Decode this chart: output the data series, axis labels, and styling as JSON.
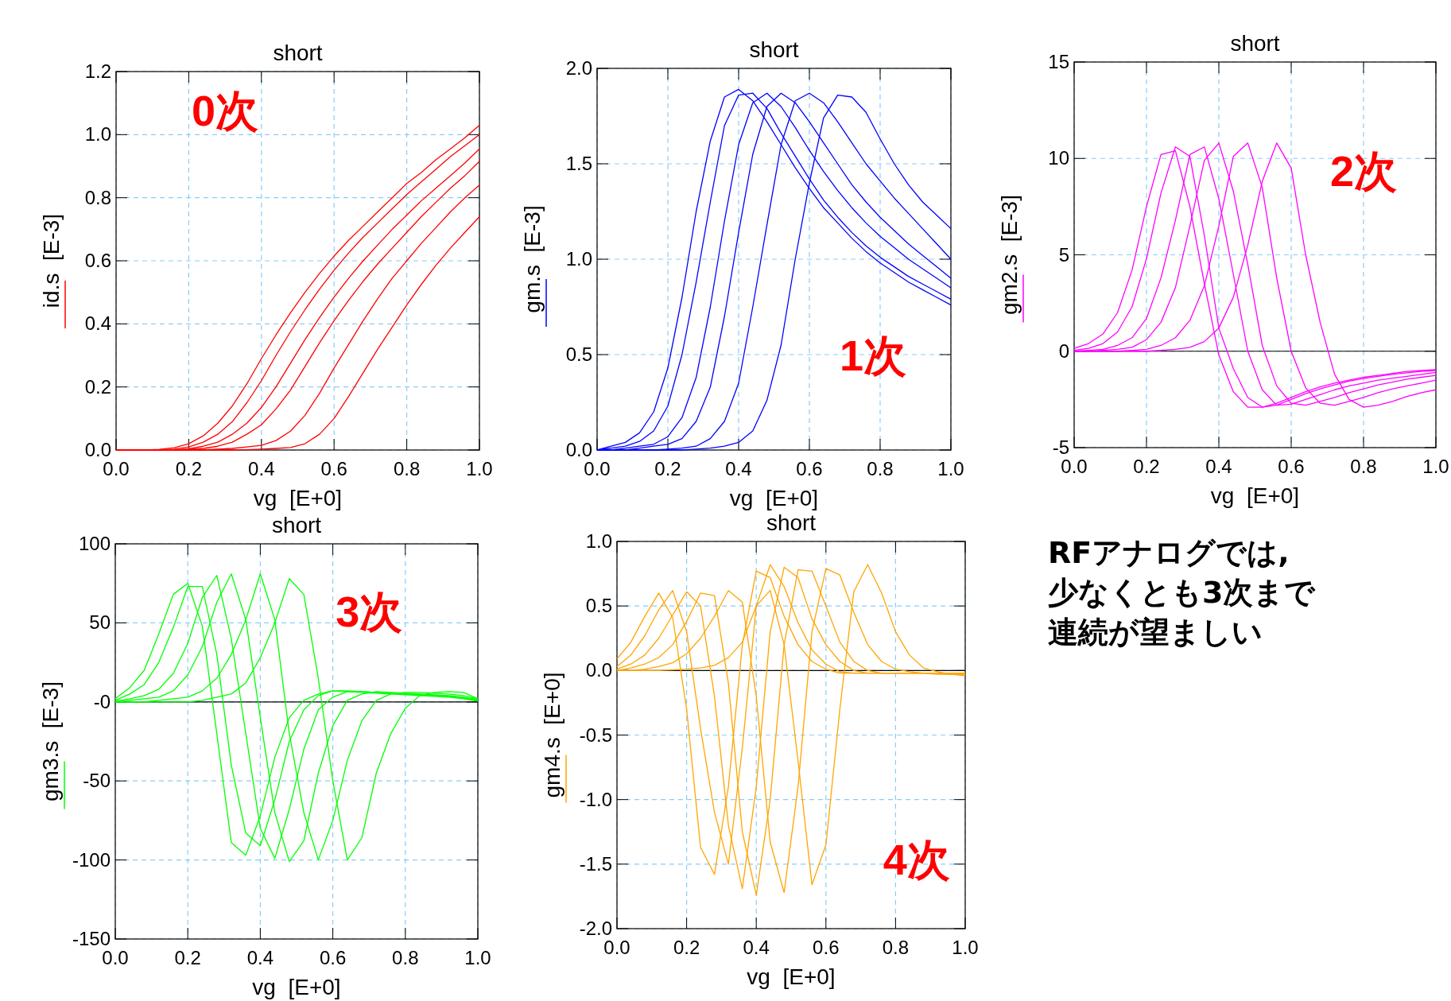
{
  "chart_data": [
    {
      "type": "line",
      "title": "short",
      "xlabel": "vg  [E+0]",
      "ylabel": "id.s  [E-3]",
      "grid": true,
      "annotations": [
        "0次"
      ],
      "xlim": [
        0,
        1
      ],
      "ylim": [
        0,
        1.2
      ],
      "xticks": [
        {
          "value": 0,
          "label": "0.0"
        },
        {
          "value": 0.2,
          "label": "0.2"
        },
        {
          "value": 0.4,
          "label": "0.4"
        },
        {
          "value": 0.6,
          "label": "0.6"
        },
        {
          "value": 0.8,
          "label": "0.8"
        },
        {
          "value": 1,
          "label": "1.0"
        }
      ],
      "yticks": [
        {
          "value": 0,
          "label": "0.0"
        },
        {
          "value": 0.2,
          "label": "0.2"
        },
        {
          "value": 0.4,
          "label": "0.4"
        },
        {
          "value": 0.6,
          "label": "0.6"
        },
        {
          "value": 0.8,
          "label": "0.8"
        },
        {
          "value": 1,
          "label": "1.0"
        },
        {
          "value": 1.2,
          "label": "1.2"
        }
      ],
      "x": [
        0,
        0.04,
        0.08,
        0.12,
        0.16,
        0.2,
        0.24,
        0.28,
        0.32,
        0.36,
        0.4,
        0.44,
        0.48,
        0.52,
        0.56,
        0.6,
        0.64,
        0.68,
        0.72,
        0.76,
        0.8,
        0.84,
        0.88,
        0.92,
        0.96,
        1
      ],
      "series": [
        {
          "color": "#ff0000",
          "values": [
            0,
            0,
            0,
            0.002,
            0.007,
            0.02,
            0.045,
            0.085,
            0.14,
            0.21,
            0.29,
            0.365,
            0.435,
            0.5,
            0.56,
            0.615,
            0.665,
            0.71,
            0.755,
            0.8,
            0.845,
            0.88,
            0.92,
            0.955,
            0.99,
            1.03
          ]
        },
        {
          "color": "#ff0000",
          "values": [
            0,
            0,
            0,
            0,
            0.003,
            0.01,
            0.025,
            0.05,
            0.09,
            0.15,
            0.22,
            0.3,
            0.375,
            0.445,
            0.51,
            0.57,
            0.625,
            0.675,
            0.72,
            0.765,
            0.81,
            0.85,
            0.89,
            0.93,
            0.965,
            1.0
          ]
        },
        {
          "color": "#ff0000",
          "values": [
            0,
            0,
            0,
            0,
            0,
            0.004,
            0.012,
            0.025,
            0.05,
            0.085,
            0.135,
            0.2,
            0.275,
            0.35,
            0.42,
            0.485,
            0.545,
            0.6,
            0.65,
            0.7,
            0.745,
            0.79,
            0.83,
            0.87,
            0.91,
            0.955
          ]
        },
        {
          "color": "#ff0000",
          "values": [
            0,
            0,
            0,
            0,
            0,
            0.002,
            0.005,
            0.012,
            0.025,
            0.05,
            0.08,
            0.13,
            0.19,
            0.265,
            0.34,
            0.41,
            0.475,
            0.535,
            0.59,
            0.64,
            0.69,
            0.74,
            0.785,
            0.83,
            0.87,
            0.915
          ]
        },
        {
          "color": "#ff0000",
          "values": [
            0,
            0,
            0,
            0,
            0,
            0,
            0.001,
            0.003,
            0.005,
            0.01,
            0.015,
            0.03,
            0.06,
            0.11,
            0.18,
            0.26,
            0.335,
            0.41,
            0.48,
            0.545,
            0.6,
            0.655,
            0.705,
            0.755,
            0.8,
            0.84
          ]
        },
        {
          "color": "#ff0000",
          "values": [
            0,
            0,
            0,
            0,
            0,
            0,
            0,
            0,
            0,
            0.001,
            0.003,
            0.005,
            0.008,
            0.02,
            0.05,
            0.1,
            0.17,
            0.245,
            0.32,
            0.39,
            0.46,
            0.525,
            0.585,
            0.64,
            0.69,
            0.74
          ]
        }
      ]
    },
    {
      "type": "line",
      "title": "short",
      "xlabel": "vg  [E+0]",
      "ylabel": "gm.s  [E-3]",
      "grid": true,
      "annotations": [
        "1次"
      ],
      "xlim": [
        0,
        1
      ],
      "ylim": [
        0,
        2
      ],
      "xticks": [
        {
          "value": 0,
          "label": "0.0"
        },
        {
          "value": 0.2,
          "label": "0.2"
        },
        {
          "value": 0.4,
          "label": "0.4"
        },
        {
          "value": 0.6,
          "label": "0.6"
        },
        {
          "value": 0.8,
          "label": "0.8"
        },
        {
          "value": 1,
          "label": "1.0"
        }
      ],
      "yticks": [
        {
          "value": 0,
          "label": "0.0"
        },
        {
          "value": 0.5,
          "label": "0.5"
        },
        {
          "value": 1,
          "label": "1.0"
        },
        {
          "value": 1.5,
          "label": "1.5"
        },
        {
          "value": 2,
          "label": "2.0"
        }
      ],
      "x": [
        0,
        0.04,
        0.08,
        0.12,
        0.16,
        0.2,
        0.24,
        0.28,
        0.32,
        0.36,
        0.4,
        0.44,
        0.48,
        0.52,
        0.56,
        0.6,
        0.64,
        0.68,
        0.72,
        0.76,
        0.8,
        0.84,
        0.88,
        0.92,
        0.96,
        1
      ],
      "series": [
        {
          "color": "#0000ff",
          "values": [
            0,
            0.02,
            0.04,
            0.09,
            0.2,
            0.43,
            0.8,
            1.25,
            1.62,
            1.85,
            1.89,
            1.83,
            1.72,
            1.6,
            1.48,
            1.37,
            1.27,
            1.19,
            1.11,
            1.04,
            0.98,
            0.93,
            0.88,
            0.84,
            0.8,
            0.76
          ]
        },
        {
          "color": "#0000ff",
          "values": [
            0,
            0.01,
            0.02,
            0.045,
            0.1,
            0.23,
            0.5,
            0.88,
            1.3,
            1.7,
            1.86,
            1.87,
            1.79,
            1.66,
            1.54,
            1.42,
            1.31,
            1.22,
            1.14,
            1.07,
            1.01,
            0.96,
            0.91,
            0.87,
            0.83,
            0.79
          ]
        },
        {
          "color": "#0000ff",
          "values": [
            0,
            0,
            0.01,
            0.02,
            0.03,
            0.07,
            0.17,
            0.38,
            0.75,
            1.2,
            1.6,
            1.82,
            1.87,
            1.8,
            1.69,
            1.57,
            1.46,
            1.36,
            1.27,
            1.19,
            1.12,
            1.06,
            1.0,
            0.95,
            0.9,
            0.85
          ]
        },
        {
          "color": "#0000ff",
          "values": [
            0,
            0,
            0,
            0.01,
            0.02,
            0.03,
            0.06,
            0.15,
            0.33,
            0.7,
            1.14,
            1.55,
            1.8,
            1.87,
            1.82,
            1.72,
            1.61,
            1.5,
            1.39,
            1.3,
            1.22,
            1.15,
            1.08,
            1.02,
            0.96,
            0.9
          ]
        },
        {
          "color": "#0000ff",
          "values": [
            0,
            0,
            0,
            0,
            0,
            0.005,
            0.01,
            0.02,
            0.06,
            0.15,
            0.35,
            0.75,
            1.18,
            1.6,
            1.83,
            1.87,
            1.82,
            1.72,
            1.61,
            1.5,
            1.41,
            1.32,
            1.24,
            1.16,
            1.08,
            1.0
          ]
        },
        {
          "color": "#0000ff",
          "values": [
            0,
            0,
            0,
            0,
            0,
            0,
            0,
            0.005,
            0.01,
            0.02,
            0.04,
            0.1,
            0.26,
            0.55,
            1.0,
            1.4,
            1.74,
            1.86,
            1.85,
            1.77,
            1.63,
            1.5,
            1.39,
            1.3,
            1.23,
            1.16
          ]
        }
      ]
    },
    {
      "type": "line",
      "title": "short",
      "xlabel": "vg  [E+0]",
      "ylabel": "gm2.s  [E-3]",
      "grid": true,
      "annotations": [
        "2次"
      ],
      "xlim": [
        0,
        1
      ],
      "ylim": [
        -5,
        15
      ],
      "xticks": [
        {
          "value": 0,
          "label": "0.0"
        },
        {
          "value": 0.2,
          "label": "0.2"
        },
        {
          "value": 0.4,
          "label": "0.4"
        },
        {
          "value": 0.6,
          "label": "0.6"
        },
        {
          "value": 0.8,
          "label": "0.8"
        },
        {
          "value": 1,
          "label": "1.0"
        }
      ],
      "yticks": [
        -5,
        0,
        5,
        10,
        15
      ],
      "ref_lines": [
        {
          "axis": "y",
          "value": 0,
          "color": "#000000"
        }
      ],
      "x": [
        0,
        0.04,
        0.08,
        0.12,
        0.16,
        0.2,
        0.24,
        0.28,
        0.32,
        0.36,
        0.4,
        0.44,
        0.48,
        0.52,
        0.56,
        0.6,
        0.64,
        0.68,
        0.72,
        0.76,
        0.8,
        0.84,
        0.88,
        0.92,
        0.96,
        1
      ],
      "series": [
        {
          "color": "#ff00ff",
          "values": [
            0.15,
            0.4,
            0.9,
            2,
            4.2,
            7.5,
            10.2,
            10.4,
            7.5,
            3.5,
            -0.2,
            -2.1,
            -2.9,
            -2.9,
            -2.7,
            -2.4,
            -2.1,
            -1.85,
            -1.65,
            -1.5,
            -1.35,
            -1.25,
            -1.15,
            -1.05,
            -1.0,
            -0.95
          ]
        },
        {
          "color": "#ff00ff",
          "values": [
            0.05,
            0.15,
            0.4,
            1,
            2.3,
            4.8,
            8.2,
            10.6,
            10.1,
            6,
            1.2,
            -0.9,
            -2.4,
            -2.9,
            -2.8,
            -2.5,
            -2.2,
            -1.95,
            -1.75,
            -1.55,
            -1.42,
            -1.3,
            -1.2,
            -1.12,
            -1.05,
            -1.0
          ]
        },
        {
          "color": "#ff00ff",
          "values": [
            0,
            0.05,
            0.1,
            0.3,
            0.7,
            1.7,
            3.8,
            6.8,
            10.2,
            10.6,
            7.9,
            4,
            0,
            -2,
            -2.8,
            -2.75,
            -2.5,
            -2.25,
            -2,
            -1.8,
            -1.65,
            -1.5,
            -1.4,
            -1.3,
            -1.2,
            -1.1
          ]
        },
        {
          "color": "#ff00ff",
          "values": [
            0,
            0,
            0.05,
            0.1,
            0.2,
            0.6,
            1.5,
            3.3,
            6.5,
            9.9,
            10.8,
            8.3,
            4.5,
            0.3,
            -1.8,
            -2.7,
            -2.8,
            -2.6,
            -2.4,
            -2.15,
            -1.95,
            -1.75,
            -1.6,
            -1.45,
            -1.35,
            -1.25
          ]
        },
        {
          "color": "#ff00ff",
          "values": [
            0,
            0,
            0,
            0,
            0.05,
            0.1,
            0.3,
            0.7,
            1.6,
            3.4,
            6.5,
            10.1,
            10.8,
            8.5,
            3.8,
            0,
            -1.9,
            -2.7,
            -2.8,
            -2.6,
            -2.4,
            -2.15,
            -1.95,
            -1.8,
            -1.65,
            -1.5
          ]
        },
        {
          "color": "#ff00ff",
          "values": [
            0,
            0,
            0,
            0,
            0,
            0,
            0.05,
            0.1,
            0.2,
            0.5,
            1.2,
            2.8,
            5.5,
            8.8,
            10.8,
            9.5,
            5,
            1.5,
            -1.2,
            -2.5,
            -2.9,
            -2.8,
            -2.6,
            -2.35,
            -2.15,
            -2.0
          ]
        }
      ]
    },
    {
      "type": "line",
      "title": "short",
      "xlabel": "vg  [E+0]",
      "ylabel": "gm3.s  [E-3]",
      "grid": true,
      "annotations": [
        "3次"
      ],
      "xlim": [
        0,
        1
      ],
      "ylim": [
        -150,
        100
      ],
      "xticks": [
        {
          "value": 0,
          "label": "0.0"
        },
        {
          "value": 0.2,
          "label": "0.2"
        },
        {
          "value": 0.4,
          "label": "0.4"
        },
        {
          "value": 0.6,
          "label": "0.6"
        },
        {
          "value": 0.8,
          "label": "0.8"
        },
        {
          "value": 1,
          "label": "1.0"
        }
      ],
      "yticks": [
        -150,
        -100,
        -50,
        {
          "value": 0,
          "label": "-0"
        },
        50,
        100
      ],
      "ref_lines": [
        {
          "axis": "y",
          "value": 0,
          "color": "#000000"
        }
      ],
      "x": [
        0,
        0.04,
        0.08,
        0.12,
        0.16,
        0.2,
        0.24,
        0.28,
        0.32,
        0.36,
        0.4,
        0.44,
        0.48,
        0.52,
        0.56,
        0.6,
        0.64,
        0.68,
        0.72,
        0.76,
        0.8,
        0.84,
        0.88,
        0.92,
        0.96,
        1
      ],
      "series": [
        {
          "color": "#00ff00",
          "values": [
            2,
            9,
            20,
            43,
            68,
            75,
            48,
            -20,
            -89,
            -97,
            -72,
            -35,
            -10,
            1,
            5,
            7,
            6.5,
            6,
            5.5,
            5,
            4.5,
            4,
            3.5,
            3,
            2,
            0.5
          ]
        },
        {
          "color": "#00ff00",
          "values": [
            1,
            5,
            11,
            25,
            47,
            73,
            73,
            30,
            -40,
            -83,
            -91,
            -62,
            -25,
            -5,
            4,
            7,
            7,
            6.5,
            6,
            5.5,
            5,
            4.5,
            4,
            3.5,
            2.5,
            1
          ]
        },
        {
          "color": "#00ff00",
          "values": [
            0.5,
            2,
            4,
            8,
            18,
            37,
            66,
            80,
            40,
            -20,
            -80,
            -99,
            -68,
            -30,
            -5,
            3,
            6.5,
            6.5,
            6,
            5.5,
            5,
            4.5,
            4,
            3.5,
            2.5,
            1
          ]
        },
        {
          "color": "#00ff00",
          "values": [
            0,
            1,
            2,
            3,
            7,
            17,
            35,
            63,
            81,
            52,
            -10,
            -70,
            -101,
            -88,
            -45,
            -15,
            1,
            5,
            6.5,
            6,
            5.5,
            5,
            4.5,
            4,
            3,
            1.5
          ]
        },
        {
          "color": "#00ff00",
          "values": [
            0,
            0,
            0,
            1,
            2,
            3,
            7,
            15,
            30,
            52,
            81,
            52,
            -20,
            -70,
            -100,
            -75,
            -37,
            -12,
            1,
            5,
            6,
            6,
            5.5,
            5,
            4,
            2
          ]
        },
        {
          "color": "#00ff00",
          "values": [
            0,
            0,
            0,
            0,
            0,
            0,
            1,
            3,
            5,
            12,
            28,
            50,
            78,
            68,
            15,
            -50,
            -100,
            -86,
            -45,
            -20,
            -4,
            4,
            6,
            6.5,
            6,
            2
          ]
        }
      ]
    },
    {
      "type": "line",
      "title": "short",
      "xlabel": "vg  [E+0]",
      "ylabel": "gm4.s  [E+0]",
      "grid": true,
      "annotations": [
        "4次"
      ],
      "xlim": [
        0,
        1
      ],
      "ylim": [
        -2,
        1
      ],
      "xticks": [
        {
          "value": 0,
          "label": "0.0"
        },
        {
          "value": 0.2,
          "label": "0.2"
        },
        {
          "value": 0.4,
          "label": "0.4"
        },
        {
          "value": 0.6,
          "label": "0.6"
        },
        {
          "value": 0.8,
          "label": "0.8"
        },
        {
          "value": 1,
          "label": "1.0"
        }
      ],
      "yticks": [
        {
          "value": -2,
          "label": "-2.0"
        },
        {
          "value": -1.5,
          "label": "-1.5"
        },
        {
          "value": -1,
          "label": "-1.0"
        },
        {
          "value": -0.5,
          "label": "-0.5"
        },
        {
          "value": 0,
          "label": "0.0"
        },
        {
          "value": 0.5,
          "label": "0.5"
        },
        {
          "value": 1,
          "label": "1.0"
        }
      ],
      "ref_lines": [
        {
          "axis": "y",
          "value": 0,
          "color": "#000000"
        }
      ],
      "x": [
        0,
        0.04,
        0.08,
        0.12,
        0.16,
        0.2,
        0.24,
        0.28,
        0.32,
        0.36,
        0.4,
        0.44,
        0.48,
        0.52,
        0.56,
        0.6,
        0.64,
        0.68,
        0.72,
        0.76,
        0.8,
        0.84,
        0.88,
        0.92,
        0.96,
        1
      ],
      "series": [
        {
          "color": "#ffa500",
          "values": [
            0.09,
            0.22,
            0.42,
            0.6,
            0.41,
            -0.3,
            -1.37,
            -1.58,
            -0.9,
            0.2,
            0.77,
            0.72,
            0.42,
            0.2,
            0.07,
            0.01,
            -0.02,
            -0.02,
            -0.02,
            -0.02,
            -0.02,
            -0.02,
            -0.02,
            -0.03,
            -0.03,
            -0.04
          ]
        },
        {
          "color": "#ffa500",
          "values": [
            0.03,
            0.12,
            0.27,
            0.47,
            0.62,
            0.3,
            -0.45,
            -1.1,
            -1.5,
            -0.6,
            0.5,
            0.82,
            0.65,
            0.37,
            0.16,
            0.05,
            -0.01,
            -0.02,
            -0.02,
            -0.02,
            -0.02,
            -0.02,
            -0.02,
            -0.02,
            -0.03,
            -0.03
          ]
        },
        {
          "color": "#ffa500",
          "values": [
            0.01,
            0.05,
            0.12,
            0.25,
            0.43,
            0.61,
            0.5,
            -0.2,
            -1.2,
            -1.69,
            -0.9,
            0.3,
            0.8,
            0.72,
            0.4,
            0.2,
            0.07,
            0,
            -0.02,
            -0.02,
            -0.02,
            -0.02,
            -0.02,
            -0.02,
            -0.02,
            -0.03
          ]
        },
        {
          "color": "#ffa500",
          "values": [
            0,
            0.02,
            0.05,
            0.1,
            0.2,
            0.38,
            0.6,
            0.58,
            -0.1,
            -1.25,
            -1.74,
            -1.0,
            0.2,
            0.78,
            0.77,
            0.5,
            0.22,
            0.07,
            0,
            -0.02,
            -0.02,
            -0.02,
            -0.02,
            -0.02,
            -0.02,
            -0.02
          ]
        },
        {
          "color": "#ffa500",
          "values": [
            0,
            0,
            0.01,
            0.03,
            0.06,
            0.13,
            0.25,
            0.42,
            0.62,
            0.53,
            -0.2,
            -1.33,
            -1.72,
            -0.9,
            0.3,
            0.79,
            0.74,
            0.45,
            0.2,
            0.07,
            0.01,
            -0.01,
            -0.02,
            -0.02,
            -0.02,
            -0.02
          ]
        },
        {
          "color": "#ffa500",
          "values": [
            0,
            0,
            0,
            0,
            0.005,
            0.01,
            0.02,
            0.04,
            0.1,
            0.22,
            0.5,
            0.62,
            0.2,
            -0.7,
            -1.66,
            -1.35,
            -0.3,
            0.61,
            0.82,
            0.6,
            0.3,
            0.12,
            0.02,
            -0.01,
            -0.03,
            -0.03
          ]
        }
      ]
    },
    {
      "type": "other",
      "annotations": [
        "RFアナログでは,",
        "少なくとも3次まで",
        "連続が望ましい"
      ]
    }
  ]
}
